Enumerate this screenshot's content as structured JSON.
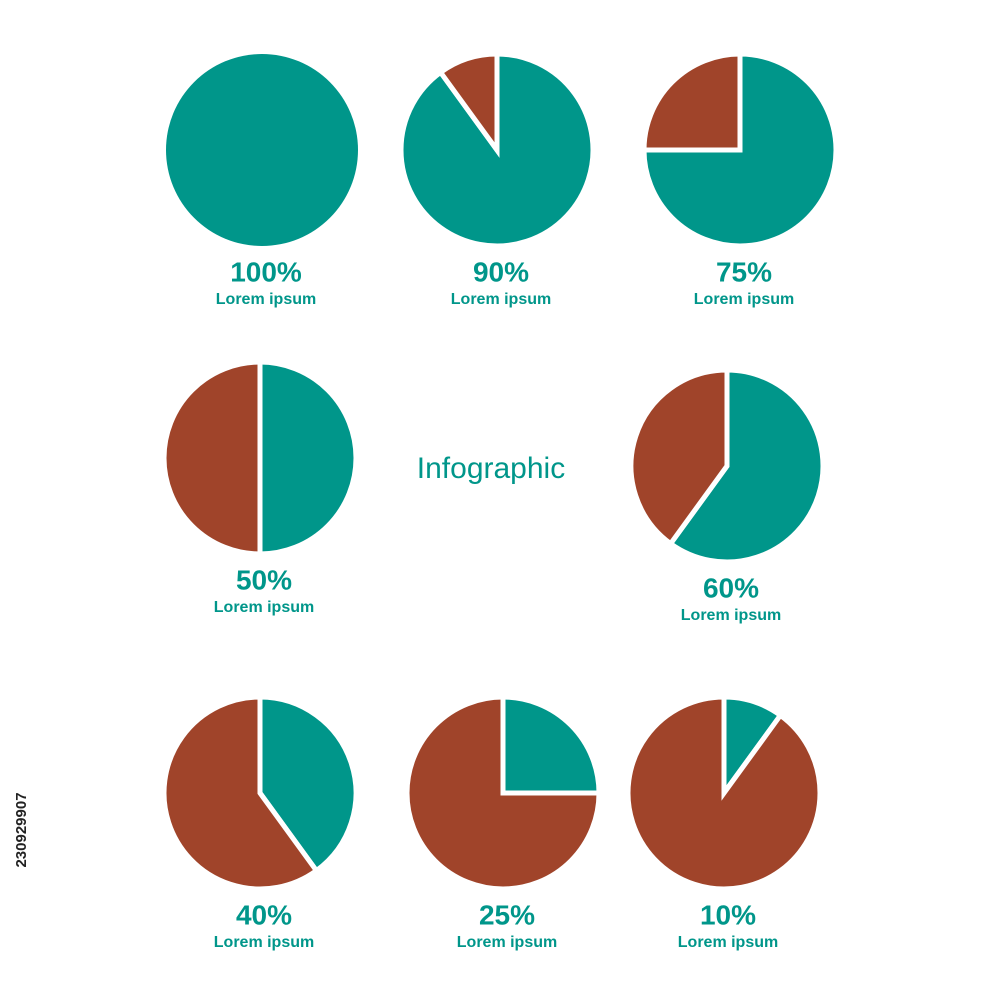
{
  "title": "Infographic",
  "stock_id": "230929907",
  "chart_data": [
    {
      "type": "pie",
      "values": [
        100,
        0
      ],
      "value_labels": [
        "100%",
        null
      ],
      "colors": [
        "#00968a",
        "#a0442a"
      ],
      "caption": "Lorem ipsum"
    },
    {
      "type": "pie",
      "values": [
        90,
        10
      ],
      "value_labels": [
        "90%",
        null
      ],
      "colors": [
        "#00968a",
        "#a0442a"
      ],
      "caption": "Lorem ipsum"
    },
    {
      "type": "pie",
      "values": [
        75,
        25
      ],
      "value_labels": [
        "75%",
        null
      ],
      "colors": [
        "#00968a",
        "#a0442a"
      ],
      "caption": "Lorem ipsum"
    },
    {
      "type": "pie",
      "values": [
        50,
        50
      ],
      "value_labels": [
        "50%",
        null
      ],
      "colors": [
        "#00968a",
        "#a0442a"
      ],
      "caption": "Lorem ipsum"
    },
    {
      "type": "pie",
      "values": [
        60,
        40
      ],
      "value_labels": [
        "60%",
        null
      ],
      "colors": [
        "#00968a",
        "#a0442a"
      ],
      "caption": "Lorem ipsum"
    },
    {
      "type": "pie",
      "values": [
        40,
        60
      ],
      "value_labels": [
        "40%",
        null
      ],
      "colors": [
        "#00968a",
        "#a0442a"
      ],
      "caption": "Lorem ipsum"
    },
    {
      "type": "pie",
      "values": [
        25,
        75
      ],
      "value_labels": [
        "25%",
        null
      ],
      "colors": [
        "#00968a",
        "#a0442a"
      ],
      "caption": "Lorem ipsum"
    },
    {
      "type": "pie",
      "values": [
        10,
        90
      ],
      "value_labels": [
        "10%",
        null
      ],
      "colors": [
        "#00968a",
        "#a0442a"
      ],
      "caption": "Lorem ipsum"
    }
  ]
}
